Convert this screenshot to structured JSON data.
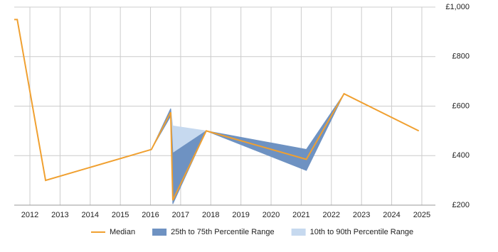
{
  "chart_data": {
    "type": "line",
    "x": [
      2011.48,
      2011.58,
      2012.52,
      2016.03,
      2016.67,
      2016.74,
      2017.85,
      2021.17,
      2022.42,
      2024.9
    ],
    "series": [
      {
        "name": "Median",
        "color": "#f0a030",
        "values": [
          950,
          950,
          300,
          425,
          575,
          220,
          500,
          385,
          650,
          500
        ]
      }
    ],
    "bands": [
      {
        "name": "10th to 90th Percentile Range",
        "color": "#c6d9ef",
        "x": [
          2016.67,
          2016.74,
          2017.85
        ],
        "low": [
          560,
          410,
          500
        ],
        "high": [
          590,
          520,
          500
        ]
      },
      {
        "name": "25th to 75th Percentile Range",
        "color": "#6e92c2",
        "x": [
          2016.03,
          2016.67,
          2016.74,
          2017.85,
          2021.17,
          2022.42
        ],
        "low": [
          425,
          560,
          205,
          500,
          340,
          650
        ],
        "high": [
          425,
          590,
          410,
          500,
          425,
          650
        ]
      }
    ],
    "xlim": [
      2011.48,
      2025.45
    ],
    "xticks": [
      2012,
      2013,
      2014,
      2015,
      2016,
      2017,
      2018,
      2019,
      2020,
      2021,
      2022,
      2023,
      2024,
      2025
    ],
    "ylim": [
      200,
      1000
    ],
    "yticks": [
      {
        "value": 200,
        "label": "£200"
      },
      {
        "value": 400,
        "label": "£400"
      },
      {
        "value": 600,
        "label": "£600"
      },
      {
        "value": 800,
        "label": "£800"
      },
      {
        "value": 1000,
        "label": "£1,000"
      }
    ],
    "grid": true
  }
}
